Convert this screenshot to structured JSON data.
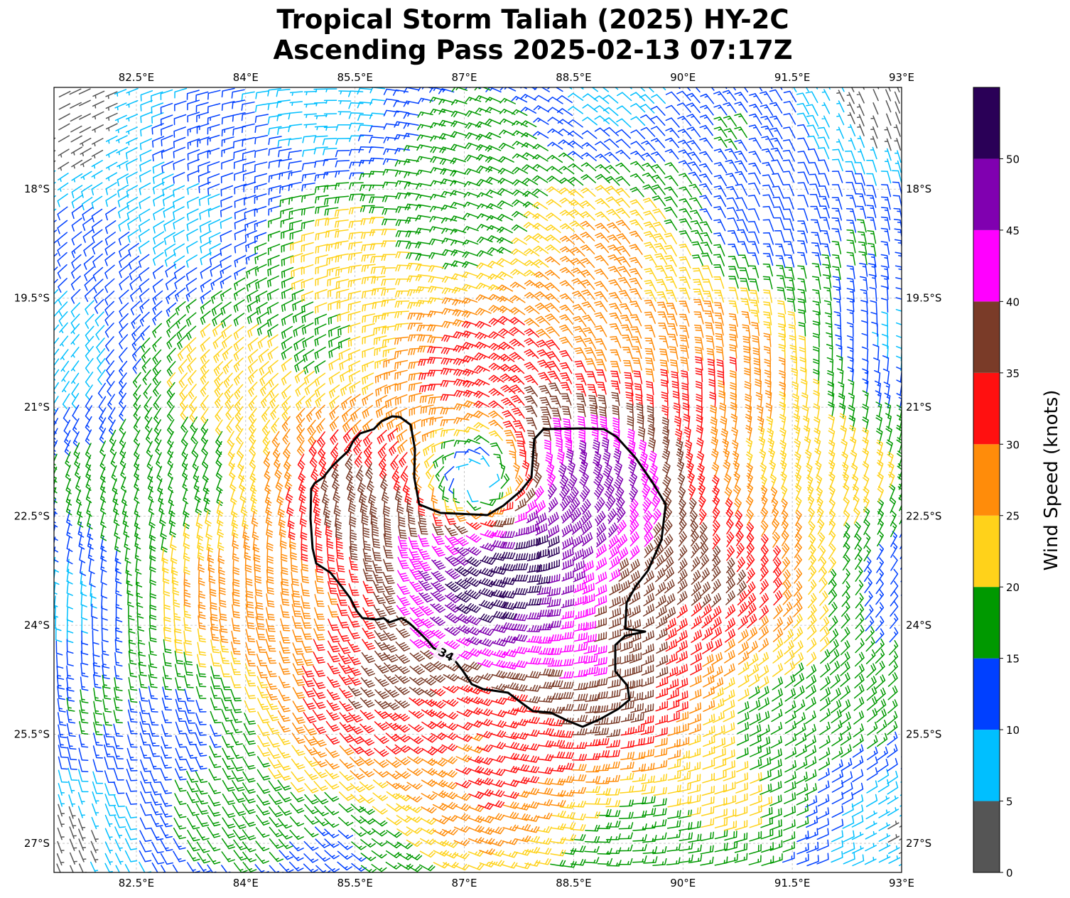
{
  "title": {
    "line1": "Tropical Storm Taliah (2025) HY-2C",
    "line2": "Ascending Pass 2025-02-13 07:17Z"
  },
  "map": {
    "lon_range": [
      81.37,
      93.0
    ],
    "lat_range": [
      -27.4,
      -16.6
    ],
    "lon_ticks": [
      "82.5°E",
      "84°E",
      "85.5°E",
      "87°E",
      "88.5°E",
      "90°E",
      "91.5°E",
      "93°E"
    ],
    "lon_tick_values": [
      82.5,
      84,
      85.5,
      87,
      88.5,
      90,
      91.5,
      93
    ],
    "lat_ticks": [
      "18°S",
      "19.5°S",
      "21°S",
      "22.5°S",
      "24°S",
      "25.5°S",
      "27°S"
    ],
    "lat_tick_values": [
      -18,
      -19.5,
      -21,
      -22.5,
      -24,
      -25.5,
      -27
    ],
    "gridlines": true,
    "storm_center": [
      87.2,
      -22.0
    ],
    "contour_label": "34",
    "contour_level_knots": 34
  },
  "colorbar": {
    "label": "Wind Speed (knots)",
    "ticks": [
      "0",
      "5",
      "10",
      "15",
      "20",
      "25",
      "30",
      "35",
      "40",
      "45",
      "50"
    ],
    "bins": [
      {
        "range": [
          0,
          5
        ],
        "color": "#555555"
      },
      {
        "range": [
          5,
          10
        ],
        "color": "#00bfff"
      },
      {
        "range": [
          10,
          15
        ],
        "color": "#0040ff"
      },
      {
        "range": [
          15,
          20
        ],
        "color": "#009900"
      },
      {
        "range": [
          20,
          25
        ],
        "color": "#ffd21a"
      },
      {
        "range": [
          25,
          30
        ],
        "color": "#ff8c0a"
      },
      {
        "range": [
          30,
          35
        ],
        "color": "#ff1010"
      },
      {
        "range": [
          35,
          40
        ],
        "color": "#7a3b28"
      },
      {
        "range": [
          40,
          45
        ],
        "color": "#ff00ff"
      },
      {
        "range": [
          45,
          50
        ],
        "color": "#8000b0"
      },
      {
        "range": [
          50,
          55
        ],
        "color": "#2a0057"
      }
    ]
  }
}
